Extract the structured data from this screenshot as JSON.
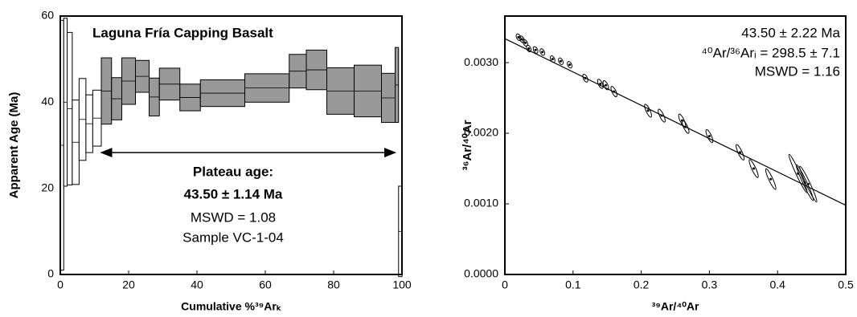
{
  "chart_data": [
    {
      "type": "age-spectrum",
      "title": "Laguna Fría Capping Basalt",
      "x_label": "Cumulative %³⁹Arₖ",
      "y_label": "Apparent Age (Ma)",
      "steps": {
        "x0": [
          0,
          1,
          2,
          3.5,
          5.5,
          7.5,
          9.5,
          12,
          15,
          18,
          22,
          26,
          29,
          35,
          41,
          54,
          67,
          72,
          78,
          86,
          94,
          98,
          99
        ],
        "x1": [
          1,
          2,
          3.5,
          5.5,
          7.5,
          9.5,
          12,
          15,
          18,
          22,
          26,
          29,
          35,
          41,
          54,
          67,
          72,
          78,
          86,
          94,
          98,
          99,
          100
        ],
        "age": [
          30,
          40,
          38.5,
          30.7,
          36,
          35,
          36.3,
          42.6,
          40.8,
          44.9,
          46,
          41.2,
          44.2,
          41.1,
          42.1,
          43.3,
          47.2,
          47.5,
          42.6,
          42.6,
          41,
          44,
          10
        ],
        "error": [
          29,
          19.5,
          17.7,
          9.8,
          9.5,
          6.7,
          6.5,
          7.7,
          4.9,
          5.4,
          3.7,
          4.4,
          3.7,
          3.1,
          3.1,
          3.3,
          3.9,
          4.6,
          5.4,
          6,
          5.7,
          8.7,
          10.5
        ],
        "colors": [
          "#ffffff",
          "#ffffff",
          "#ffffff",
          "#ffffff",
          "#ffffff",
          "#ffffff",
          "#ffffff",
          "#999999",
          "#999999",
          "#999999",
          "#999999",
          "#999999",
          "#999999",
          "#999999",
          "#999999",
          "#999999",
          "#999999",
          "#999999",
          "#999999",
          "#999999",
          "#999999",
          "#999999",
          "#ffffff"
        ]
      },
      "plateau_arrow": {
        "x": [
          12,
          98
        ],
        "y": 28.3
      },
      "annotations": [
        "Plateau age:",
        "43.50 ± 1.14 Ma",
        "MSWD = 1.08",
        "Sample VC-1-04"
      ],
      "xlim": [
        0,
        100
      ],
      "xticks": [
        0,
        20,
        40,
        60,
        80,
        100
      ],
      "ylim": [
        0,
        60
      ],
      "yticks": [
        0,
        20,
        40,
        60
      ]
    },
    {
      "type": "scatter",
      "x_label": "³⁹Ar/⁴⁰Ar",
      "y_label": "³⁶Ar/⁴⁰Ar",
      "x": [
        0.02,
        0.025,
        0.03,
        0.035,
        0.045,
        0.055,
        0.07,
        0.082,
        0.095,
        0.118,
        0.14,
        0.148,
        0.16,
        0.21,
        0.23,
        0.26,
        0.265,
        0.3,
        0.345,
        0.365,
        0.39,
        0.43,
        0.44,
        0.445
      ],
      "y": [
        0.00336,
        0.00333,
        0.00328,
        0.0032,
        0.00318,
        0.00315,
        0.00305,
        0.00302,
        0.00297,
        0.00278,
        0.0027,
        0.00268,
        0.00259,
        0.00232,
        0.00225,
        0.00218,
        0.00209,
        0.00196,
        0.00173,
        0.0015,
        0.00135,
        0.00143,
        0.0013,
        0.00128
      ],
      "y_errors": [
        5e-05,
        5e-05,
        5e-05,
        5e-05,
        5e-05,
        5e-05,
        5e-05,
        5e-05,
        5e-05,
        6e-05,
        7e-05,
        7e-05,
        8e-05,
        0.0001,
        0.0001,
        0.0001,
        0.0001,
        0.0001,
        0.00012,
        0.00014,
        0.00016,
        0.0003,
        0.00028,
        0.00028
      ],
      "fit_line": {
        "x": [
          0,
          0.5
        ],
        "y": [
          0.00334,
          0.00098
        ]
      },
      "annotations": [
        "43.50 ± 2.22 Ma",
        "⁴⁰Ar/³⁶Arᵢ = 298.5 ± 7.1",
        "MSWD = 1.16"
      ],
      "xlim": [
        0,
        0.5
      ],
      "xticks": [
        0,
        0.1,
        0.2,
        0.3,
        0.4,
        0.5
      ],
      "ylim": [
        0,
        0.00366
      ],
      "yticks": [
        {
          "value": 0,
          "label": "0.0000"
        },
        {
          "value": 0.001,
          "label": "0.0010"
        },
        {
          "value": 0.002,
          "label": "0.0020"
        },
        {
          "value": 0.003,
          "label": "0.0030"
        }
      ]
    }
  ]
}
